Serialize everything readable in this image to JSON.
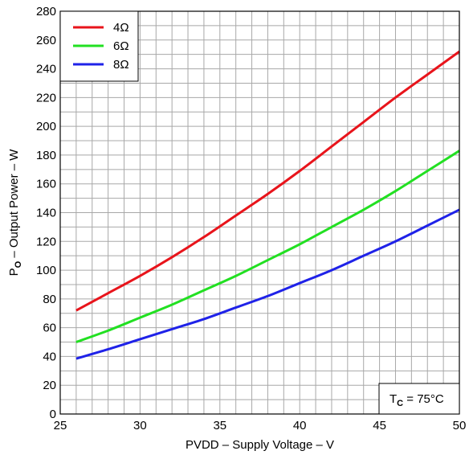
{
  "chart_data": {
    "type": "line",
    "xlabel": "PVDD – Supply Voltage – V",
    "ylabel": {
      "main": "P",
      "sub": "O",
      "rest": " – Output Power – W"
    },
    "xlim": [
      25,
      50
    ],
    "ylim": [
      0,
      280
    ],
    "x_ticks": [
      25,
      30,
      35,
      40,
      45,
      50
    ],
    "y_ticks": [
      0,
      20,
      40,
      60,
      80,
      100,
      120,
      140,
      160,
      180,
      200,
      220,
      240,
      260,
      280
    ],
    "x_minor_step": 1,
    "y_minor_step": 10,
    "grid": true,
    "legend_position": "top-left",
    "annotation": {
      "main": "T",
      "sub": "C",
      "rest": " = 75°C"
    },
    "series": [
      {
        "name": "4Ω",
        "color": "#e8141b",
        "x": [
          26,
          28,
          30,
          32,
          34,
          36,
          38,
          40,
          42,
          44,
          46,
          48,
          50
        ],
        "y": [
          72,
          84,
          96,
          109,
          123,
          138,
          153,
          169,
          186,
          203,
          220,
          236,
          252
        ]
      },
      {
        "name": "6Ω",
        "color": "#22e022",
        "x": [
          26,
          28,
          30,
          32,
          34,
          36,
          38,
          40,
          42,
          44,
          46,
          48,
          50
        ],
        "y": [
          50,
          58,
          67,
          76,
          86,
          96,
          107,
          118,
          130,
          142,
          155,
          169,
          183
        ]
      },
      {
        "name": "8Ω",
        "color": "#1f22e8",
        "x": [
          26,
          28,
          30,
          32,
          34,
          36,
          38,
          40,
          42,
          44,
          46,
          48,
          50
        ],
        "y": [
          38.5,
          45,
          52,
          59,
          66,
          74,
          82,
          91,
          100,
          110,
          120,
          131,
          142
        ]
      }
    ]
  }
}
